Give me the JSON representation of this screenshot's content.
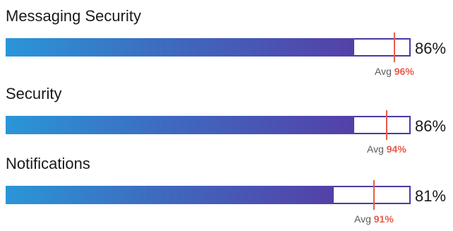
{
  "chart_data": {
    "type": "bar",
    "orientation": "horizontal",
    "xlim": [
      0,
      100
    ],
    "avg_prefix": "Avg",
    "unit": "%",
    "categories": [
      "Messaging Security",
      "Security",
      "Notifications"
    ],
    "series": [
      {
        "values": [
          86,
          86,
          81
        ]
      },
      {
        "values": [
          96,
          94,
          91
        ]
      }
    ]
  },
  "colors": {
    "fill_start": "#2a96d8",
    "fill_end": "#5440a8",
    "track_border": "#4a3aa2",
    "average_marker": "#ea5a48"
  }
}
